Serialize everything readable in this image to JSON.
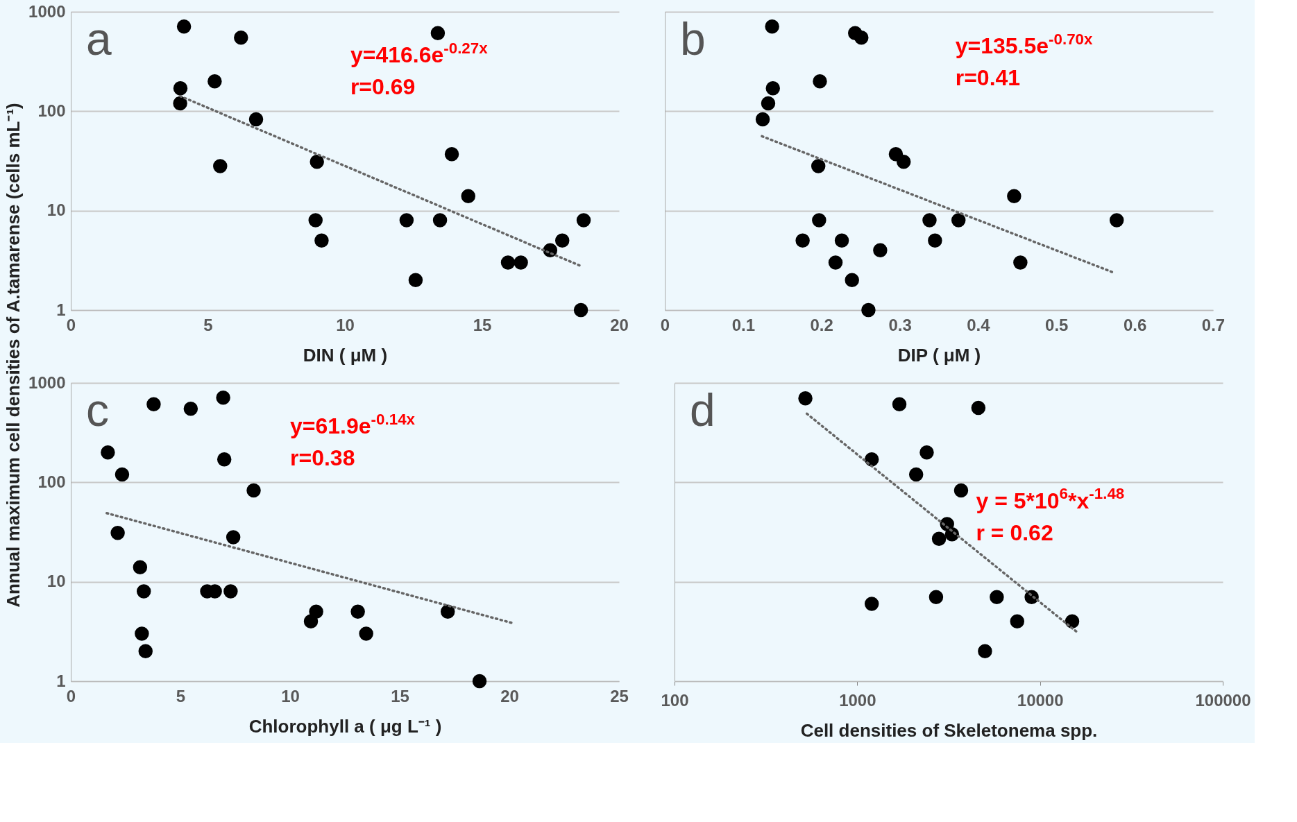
{
  "chart_data": [
    {
      "type": "scatter",
      "xlabel": "DIN ( μM )",
      "ylabel": "Annual maximum cell densities of A.tamarense (cells mL⁻¹)",
      "xlim": [
        0,
        20
      ],
      "xticks": [
        0,
        5,
        10,
        15,
        20
      ],
      "ylim": [
        1,
        1000
      ],
      "yticks": [
        1,
        10,
        100,
        1000
      ],
      "log": "y",
      "grid": "y",
      "annotations": [
        "a",
        "y=416.6e$^{-0.27x}$",
        "r=0.69"
      ],
      "series": [
        {
          "color": "#000000",
          "marker": "circle",
          "x": [
            4.13,
            6.21,
            13.39,
            5.25,
            4.0,
            3.99,
            6.76,
            5.45,
            8.98,
            13.9,
            14.5,
            8.93,
            9.15,
            12.25,
            13.47,
            18.71,
            17.93,
            17.49,
            15.95,
            16.42,
            12.58,
            18.61
          ],
          "values": [
            710,
            550,
            610,
            200,
            170,
            120,
            83,
            28,
            31,
            37,
            14,
            8,
            5,
            8,
            8,
            8,
            5,
            4,
            3,
            3,
            2,
            1
          ]
        },
        {
          "type": "line",
          "color": "#666666",
          "line_style": "dotted",
          "x": [
            3.99,
            18.57
          ],
          "values": [
            142,
            2.8
          ]
        }
      ]
    },
    {
      "type": "scatter",
      "xlabel": "DIP ( μM )",
      "xlim": [
        0,
        0.7
      ],
      "xticks": [
        0,
        0.1,
        0.2,
        0.3,
        0.4,
        0.5,
        0.6,
        0.7
      ],
      "ylim": [
        1,
        1000
      ],
      "yticks": [
        1,
        10,
        100,
        1000
      ],
      "log": "y",
      "grid": "y",
      "tick_labels": "x",
      "annotations": [
        "b",
        "y=135.5e$^{-0.70x}$",
        "r=0.41"
      ],
      "series": [
        {
          "color": "#000000",
          "marker": "circle",
          "x": [
            0.137,
            0.243,
            0.251,
            0.198,
            0.138,
            0.132,
            0.125,
            0.196,
            0.295,
            0.305,
            0.446,
            0.197,
            0.338,
            0.375,
            0.577,
            0.176,
            0.226,
            0.345,
            0.275,
            0.218,
            0.454,
            0.239,
            0.26
          ],
          "values": [
            710,
            610,
            550,
            200,
            170,
            120,
            83,
            28,
            37,
            31,
            14,
            8,
            8,
            8,
            8,
            5,
            5,
            5,
            4,
            3,
            3,
            2,
            1
          ]
        },
        {
          "type": "line",
          "color": "#666666",
          "line_style": "dotted",
          "x": [
            0.124,
            0.572
          ],
          "values": [
            56,
            2.4
          ]
        }
      ]
    },
    {
      "type": "scatter",
      "xlabel": "Chlorophyll a ( μg L⁻¹ )",
      "xlim": [
        0,
        25
      ],
      "xticks": [
        0,
        5,
        10,
        15,
        20,
        25
      ],
      "ylim": [
        1,
        1000
      ],
      "yticks": [
        1,
        10,
        100,
        1000
      ],
      "log": "y",
      "grid": "y",
      "annotations": [
        "c",
        "y=61.9e$^{-0.14x}$",
        "r=0.38"
      ],
      "series": [
        {
          "color": "#000000",
          "marker": "circle",
          "x": [
            6.95,
            3.78,
            5.47,
            1.69,
            7.0,
            2.34,
            8.34,
            2.14,
            7.41,
            3.16,
            3.33,
            6.22,
            6.57,
            7.29,
            11.19,
            10.95,
            13.09,
            17.19,
            13.47,
            3.24,
            3.41,
            18.64
          ],
          "values": [
            710,
            610,
            550,
            200,
            170,
            120,
            83,
            31,
            28,
            14,
            8,
            8,
            8,
            8,
            5,
            4,
            5,
            5,
            3,
            3,
            2,
            1
          ]
        },
        {
          "type": "line",
          "color": "#666666",
          "line_style": "dotted",
          "x": [
            1.64,
            20.22
          ],
          "values": [
            49,
            3.8
          ]
        }
      ]
    },
    {
      "type": "scatter",
      "xlabel": "Cell densities of Skeletonema spp.",
      "xlim": [
        100,
        100000
      ],
      "xticks": [
        100,
        1000,
        10000,
        100000
      ],
      "ylim": [
        1,
        1000
      ],
      "yticks": [
        1,
        10,
        100,
        1000
      ],
      "log": "xy",
      "grid": "y",
      "tick_labels": "x",
      "annotations": [
        "d",
        "y = 5*10$^{6}$*x$^{-1.48}$",
        "r = 0.62"
      ],
      "series": [
        {
          "color": "#000000",
          "marker": "circle",
          "x": [
            520,
            1700,
            4600,
            2400,
            1200,
            2100,
            3700,
            3100,
            3300,
            2800,
            1200,
            2700,
            5800,
            9000,
            7500,
            15000,
            5000
          ],
          "values": [
            700,
            610,
            560,
            200,
            170,
            120,
            83,
            38,
            30,
            27,
            6,
            7,
            7,
            7,
            4,
            4,
            2
          ]
        },
        {
          "type": "line",
          "color": "#666666",
          "line_style": "dotted",
          "x": [
            530,
            16000
          ],
          "values": [
            490,
            3.1
          ]
        }
      ]
    }
  ]
}
